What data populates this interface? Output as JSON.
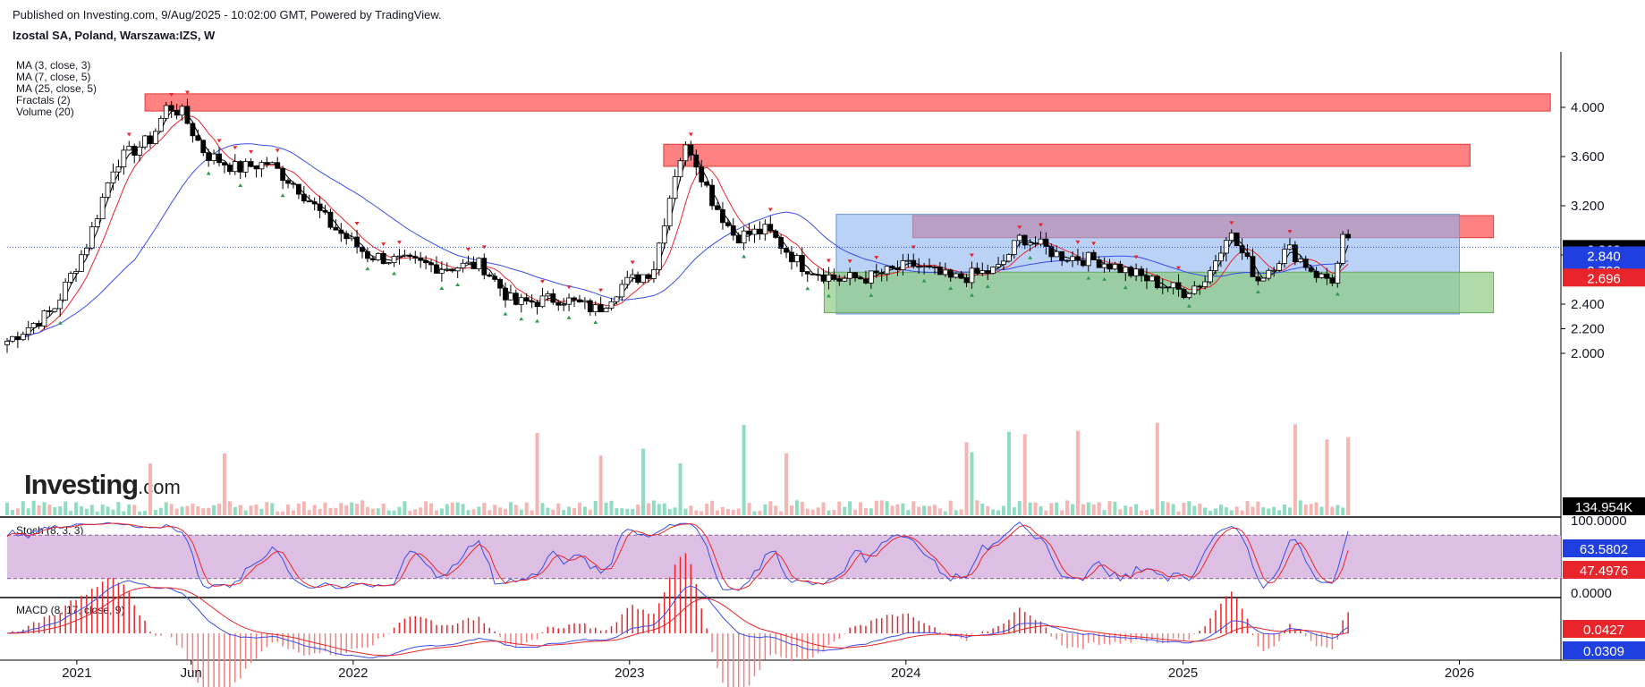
{
  "header": {
    "published": "Published on Investing.com, 9/Aug/2025 - 10:02:00 GMT, Powered by TradingView.",
    "symbol": "Izostal SA, Poland, Warszawa:IZS, W"
  },
  "legend": [
    "MA (3, close, 3)",
    "MA (7, close, 5)",
    "MA (25, close, 5)",
    "Fractals (2)",
    "Volume (20)"
  ],
  "watermark": {
    "main": "Investing",
    "suffix": ".com"
  },
  "colors": {
    "up": "#26a69a",
    "down": "#ef5350",
    "ma3": "#000000",
    "ma7": "#e8252b",
    "ma25": "#3a4de6",
    "resistance_zone": "#ff6b6b",
    "range_box": "#8ab4f0",
    "support_zone": "#8fca83",
    "overlap_zone": "#b08fb8",
    "stoch_band": "#d9b8e0",
    "last_price": "#000000"
  },
  "chart_data": [
    {
      "type": "candlestick",
      "title": "Izostal SA, Poland, Warszawa:IZS, W",
      "y_ticks": [
        "4.000",
        "3.600",
        "3.200",
        "2.800",
        "2.400",
        "2.200",
        "2.000"
      ],
      "x_ticks": [
        "2021",
        "Jun",
        "2022",
        "2023",
        "2024",
        "2025",
        "2026"
      ],
      "price_path": [
        [
          "2020-10-01",
          2.1
        ],
        [
          "2020-12-01",
          2.35
        ],
        [
          "2021-01-15",
          2.9
        ],
        [
          "2021-02-20",
          3.55
        ],
        [
          "2021-04-10",
          3.75
        ],
        [
          "2021-05-01",
          4.02
        ],
        [
          "2021-05-20",
          3.95
        ],
        [
          "2021-06-20",
          3.62
        ],
        [
          "2021-08-01",
          3.5
        ],
        [
          "2021-09-10",
          3.55
        ],
        [
          "2021-10-20",
          3.35
        ],
        [
          "2021-12-01",
          3.05
        ],
        [
          "2022-01-20",
          2.8
        ],
        [
          "2022-03-01",
          2.75
        ],
        [
          "2022-05-01",
          2.7
        ],
        [
          "2022-06-20",
          2.72
        ],
        [
          "2022-08-01",
          2.4
        ],
        [
          "2022-10-01",
          2.45
        ],
        [
          "2022-11-20",
          2.35
        ],
        [
          "2022-12-20",
          2.55
        ],
        [
          "2023-02-01",
          2.68
        ],
        [
          "2023-03-05",
          3.55
        ],
        [
          "2023-03-20",
          3.7
        ],
        [
          "2023-04-20",
          3.25
        ],
        [
          "2023-05-20",
          2.95
        ],
        [
          "2023-07-01",
          3.0
        ],
        [
          "2023-08-15",
          2.72
        ],
        [
          "2023-10-01",
          2.6
        ],
        [
          "2023-11-15",
          2.62
        ],
        [
          "2024-01-10",
          2.72
        ],
        [
          "2024-03-01",
          2.6
        ],
        [
          "2024-05-01",
          2.68
        ],
        [
          "2024-06-01",
          2.95
        ],
        [
          "2024-07-20",
          2.8
        ],
        [
          "2024-09-15",
          2.75
        ],
        [
          "2024-11-15",
          2.6
        ],
        [
          "2025-01-01",
          2.5
        ],
        [
          "2025-02-01",
          2.6
        ],
        [
          "2025-03-01",
          3.0
        ],
        [
          "2025-04-10",
          2.6
        ],
        [
          "2025-05-20",
          2.85
        ],
        [
          "2025-07-01",
          2.62
        ],
        [
          "2025-07-20",
          2.6
        ],
        [
          "2025-08-01",
          2.95
        ],
        [
          "2025-08-09",
          2.863
        ]
      ],
      "zones": [
        {
          "kind": "resistance",
          "from": "2021-04-01",
          "to": "2026-05-01",
          "low": 3.97,
          "high": 4.11
        },
        {
          "kind": "resistance",
          "from": "2023-02-15",
          "to": "2026-01-15",
          "low": 3.52,
          "high": 3.7
        },
        {
          "kind": "resistance",
          "from": "2024-01-10",
          "to": "2026-02-15",
          "low": 2.94,
          "high": 3.12
        },
        {
          "kind": "range",
          "from": "2023-10-01",
          "to": "2026-01-01",
          "low": 2.32,
          "high": 3.13
        },
        {
          "kind": "support",
          "from": "2023-09-15",
          "to": "2026-02-15",
          "low": 2.33,
          "high": 2.66
        }
      ],
      "price_labels": [
        {
          "text": "2.863",
          "bg": "#000000",
          "fg": "#ffffff"
        },
        {
          "text": "2.840",
          "bg": "#1f3fe0",
          "fg": "#ffffff"
        },
        {
          "text": "2.728",
          "bg": "#1f3fe0",
          "fg": "#ffffff"
        },
        {
          "text": "2.696",
          "bg": "#e8252b",
          "fg": "#ffffff"
        }
      ],
      "volume_label": "134.954K",
      "last_price": 2.863
    },
    {
      "type": "line",
      "title": "Stoch (8, 3, 3)",
      "y_ticks": [
        "100.0000",
        "0.0000"
      ],
      "value_labels": [
        {
          "text": "63.5802",
          "bg": "#1f3fe0",
          "fg": "#ffffff"
        },
        {
          "text": "47.4976",
          "bg": "#e8252b",
          "fg": "#ffffff"
        }
      ],
      "band": [
        20,
        80
      ]
    },
    {
      "type": "line",
      "title": "MACD (8, 17, close, 9)",
      "value_labels": [
        {
          "text": "0.0427",
          "bg": "#e8252b",
          "fg": "#ffffff"
        },
        {
          "text": "0.0309",
          "bg": "#1f3fe0",
          "fg": "#ffffff"
        }
      ]
    }
  ]
}
